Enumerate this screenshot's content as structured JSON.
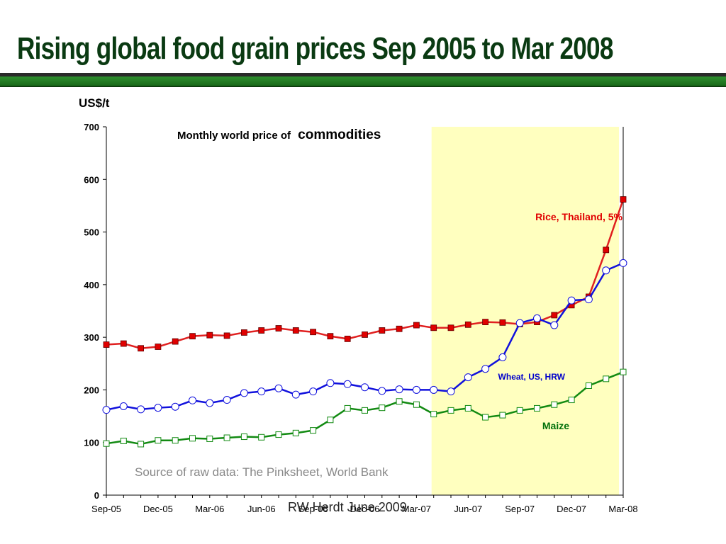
{
  "slide": {
    "title": "Rising global food grain prices Sep 2005 to Mar 2008",
    "footer": "RW Herdt    June 2009"
  },
  "chart_data": {
    "type": "line",
    "title": "Monthly world price of",
    "title_emphasis": "commodities",
    "ylabel": "US$/t",
    "ylim": [
      0,
      700
    ],
    "yticks": [
      0,
      100,
      200,
      300,
      400,
      500,
      600,
      700
    ],
    "grid": false,
    "source_note": "Source of raw data: The Pinksheet, World Bank",
    "highlight_region": {
      "from": "Apr-07",
      "to": "Mar-08",
      "color": "#ffffbf"
    },
    "x": [
      "Sep-05",
      "Oct-05",
      "Nov-05",
      "Dec-05",
      "Jan-06",
      "Feb-06",
      "Mar-06",
      "Apr-06",
      "May-06",
      "Jun-06",
      "Jul-06",
      "Aug-06",
      "Sep-06",
      "Oct-06",
      "Nov-06",
      "Dec-06",
      "Jan-07",
      "Feb-07",
      "Mar-07",
      "Apr-07",
      "May-07",
      "Jun-07",
      "Jul-07",
      "Aug-07",
      "Sep-07",
      "Oct-07",
      "Nov-07",
      "Dec-07",
      "Jan-08",
      "Feb-08",
      "Mar-08"
    ],
    "xtick_labels": [
      "Sep-05",
      "Dec-05",
      "Mar-06",
      "Jun-06",
      "Sep-06",
      "Dec-06",
      "Mar-07",
      "Jun-07",
      "Sep-07",
      "Dec-07",
      "Mar-08"
    ],
    "series": [
      {
        "name": "Rice, Thailand, 5%",
        "color": "#e00000",
        "line": "#e02020",
        "marker": "square-filled",
        "values": [
          286,
          288,
          279,
          282,
          292,
          302,
          304,
          303,
          309,
          313,
          317,
          313,
          310,
          302,
          297,
          305,
          313,
          316,
          323,
          318,
          318,
          324,
          329,
          328,
          325,
          329,
          342,
          361,
          377,
          466,
          562
        ]
      },
      {
        "name": "Wheat, US, HRW",
        "color": "#0000cc",
        "line": "#1010dd",
        "marker": "circle-open",
        "values": [
          162,
          169,
          163,
          166,
          168,
          180,
          175,
          181,
          194,
          197,
          203,
          191,
          197,
          213,
          211,
          205,
          198,
          201,
          200,
          200,
          197,
          224,
          240,
          262,
          327,
          336,
          323,
          370,
          372,
          427,
          441
        ]
      },
      {
        "name": "Maize",
        "color": "#00700a",
        "line": "#128a12",
        "marker": "square-open",
        "values": [
          98,
          103,
          97,
          104,
          104,
          108,
          107,
          109,
          111,
          110,
          115,
          118,
          123,
          143,
          165,
          161,
          166,
          178,
          172,
          154,
          161,
          165,
          148,
          152,
          161,
          165,
          172,
          181,
          208,
          221,
          234
        ]
      }
    ]
  },
  "colors": {
    "title": "#0a3a12",
    "band_green": "#2f8f2f",
    "highlight": "#ffffbf",
    "source_text": "#888888"
  }
}
